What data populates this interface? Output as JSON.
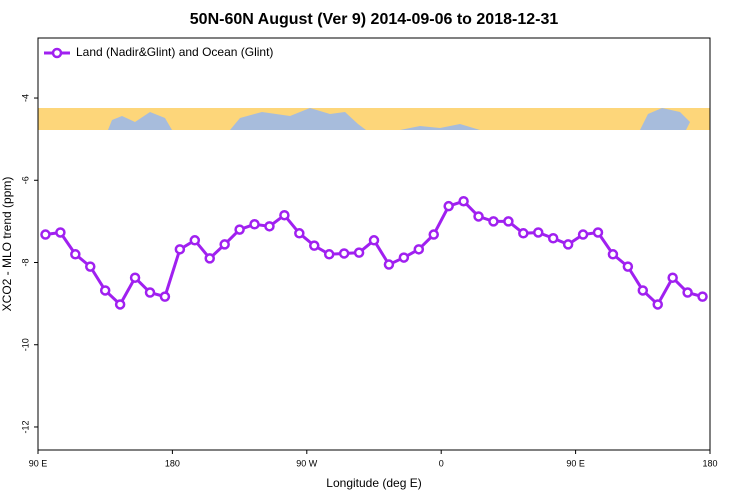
{
  "chart_data": {
    "type": "line",
    "title": "50N-60N August (Ver 9)   2014-09-06 to 2018-12-31",
    "xlabel": "Longitude (deg E)",
    "ylabel": "XCO2 - MLO trend (ppm)",
    "x": [
      95,
      105,
      115,
      125,
      135,
      145,
      155,
      165,
      175,
      185,
      195,
      205,
      215,
      225,
      235,
      245,
      255,
      265,
      275,
      285,
      295,
      305,
      315,
      325,
      335,
      345,
      355,
      365,
      375,
      385,
      395,
      405,
      415,
      425,
      435,
      445,
      455,
      465,
      475,
      485,
      495,
      505,
      515,
      525,
      535
    ],
    "series": [
      {
        "name": "Land (Nadir&Glint) and Ocean (Glint)",
        "color": "#a020f0",
        "values": [
          -7.32,
          -7.27,
          -7.8,
          -8.1,
          -8.68,
          -9.02,
          -8.37,
          -8.73,
          -8.83,
          -7.68,
          -7.46,
          -7.9,
          -7.56,
          -7.2,
          -7.07,
          -7.12,
          -6.85,
          -7.29,
          -7.59,
          -7.8,
          -7.78,
          -7.76,
          -7.46,
          -8.05,
          -7.88,
          -7.68,
          -7.32,
          -6.63,
          -6.51,
          -6.88,
          -7.0,
          -7.0,
          -7.29,
          -7.27,
          -7.41,
          -7.56,
          -7.32,
          -7.27,
          -7.8,
          -8.1,
          -8.68,
          -9.02,
          -8.37,
          -8.73,
          -8.83
        ]
      }
    ],
    "xlim": [
      90,
      540
    ],
    "xticks": [
      {
        "value": 90,
        "label": "90 E"
      },
      180,
      {
        "value": 270,
        "label": "90 W"
      },
      {
        "value": 360,
        "label": "0"
      },
      {
        "value": 450,
        "label": "90 E"
      },
      {
        "value": 540,
        "label": "180"
      }
    ],
    "ylim": [
      -12.56,
      -2.54
    ],
    "yticks": [
      -12,
      -10,
      -8,
      -6,
      -4
    ],
    "legend": "top-left"
  }
}
